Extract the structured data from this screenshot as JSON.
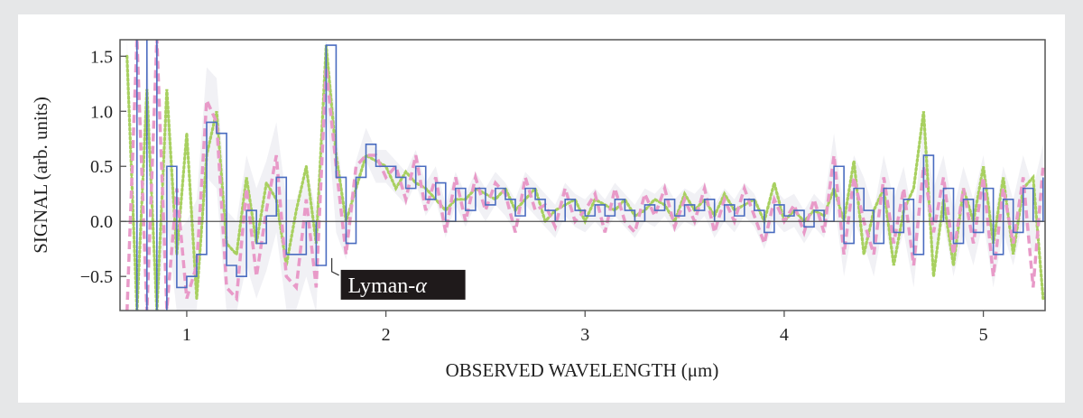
{
  "chart_data": {
    "type": "line",
    "xlabel": "OBSERVED WAVELENGTH (μm)",
    "ylabel": "SIGNAL (arb. units)",
    "xlim": [
      0.665,
      5.31
    ],
    "ylim": [
      -0.81,
      1.65
    ],
    "xticks": [
      1,
      2,
      3,
      4,
      5
    ],
    "yticks": [
      -0.5,
      0.0,
      0.5,
      1.0,
      1.5
    ],
    "ytick_labels": [
      "−0.5",
      "0.0",
      "0.5",
      "1.0",
      "1.5"
    ],
    "grid": false,
    "zero_line": true,
    "annotation": {
      "text": "Lyman-",
      "greek": "α",
      "x": 1.76,
      "y": -0.35
    },
    "x": [
      0.7,
      0.75,
      0.8,
      0.85,
      0.9,
      0.95,
      1.0,
      1.05,
      1.1,
      1.15,
      1.2,
      1.25,
      1.3,
      1.35,
      1.4,
      1.45,
      1.5,
      1.55,
      1.6,
      1.65,
      1.7,
      1.75,
      1.8,
      1.85,
      1.9,
      1.95,
      2.0,
      2.05,
      2.1,
      2.15,
      2.2,
      2.25,
      2.3,
      2.35,
      2.4,
      2.45,
      2.5,
      2.55,
      2.6,
      2.65,
      2.7,
      2.75,
      2.8,
      2.85,
      2.9,
      2.95,
      3.0,
      3.05,
      3.1,
      3.15,
      3.2,
      3.25,
      3.3,
      3.35,
      3.4,
      3.45,
      3.5,
      3.55,
      3.6,
      3.65,
      3.7,
      3.75,
      3.8,
      3.85,
      3.9,
      3.95,
      4.0,
      4.05,
      4.1,
      4.15,
      4.2,
      4.25,
      4.3,
      4.35,
      4.4,
      4.45,
      4.5,
      4.55,
      4.6,
      4.65,
      4.7,
      4.75,
      4.8,
      4.85,
      4.9,
      4.95,
      5.0,
      5.05,
      5.1,
      5.15,
      5.2,
      5.25,
      5.3
    ],
    "series": [
      {
        "style": "dotted",
        "color": "#a8d060",
        "values": [
          1.5,
          -2,
          1.2,
          -1,
          1.2,
          -0.3,
          0.8,
          -0.7,
          0.6,
          1.0,
          -0.2,
          -0.3,
          0.4,
          -0.2,
          0.35,
          0.2,
          -0.4,
          0.1,
          0.5,
          -0.2,
          1.6,
          0.6,
          0.0,
          0.3,
          0.6,
          0.55,
          0.5,
          0.3,
          0.45,
          0.35,
          0.3,
          0.2,
          0.1,
          0.2,
          0.2,
          0.3,
          0.25,
          0.2,
          0.3,
          0.1,
          0.2,
          0.3,
          0.0,
          0.1,
          0.15,
          0.2,
          0.0,
          0.2,
          0.15,
          0.1,
          0.2,
          0.05,
          0.1,
          0.2,
          0.15,
          0.0,
          0.25,
          0.1,
          0.2,
          0.05,
          0.25,
          0.1,
          0.15,
          0.2,
          0.0,
          0.35,
          0.0,
          0.1,
          0.0,
          0.1,
          0.05,
          0.3,
          0.0,
          0.55,
          -0.3,
          0.1,
          0.3,
          -0.4,
          0.1,
          0.3,
          1.0,
          -0.5,
          0.2,
          -0.4,
          0.3,
          0.0,
          0.5,
          -0.2,
          0.4,
          -0.3,
          0.3,
          0.4,
          -0.7
        ]
      },
      {
        "style": "dashed",
        "color": "#e89ac8",
        "values": [
          -2,
          1.8,
          -1.6,
          2,
          -0.8,
          0.3,
          -0.7,
          -0.4,
          1.1,
          0.9,
          -0.6,
          -0.7,
          0.3,
          -0.5,
          0.1,
          0.6,
          -0.5,
          -0.6,
          0.2,
          -0.6,
          1.4,
          0.5,
          -0.3,
          0.5,
          0.6,
          0.6,
          0.4,
          0.5,
          0.2,
          0.6,
          0.1,
          0.4,
          -0.1,
          0.4,
          0.0,
          0.4,
          0.1,
          0.35,
          0.25,
          -0.1,
          0.4,
          0.1,
          0.15,
          -0.05,
          0.3,
          0.0,
          0.1,
          0.25,
          -0.1,
          0.3,
          0.0,
          -0.1,
          0.25,
          0.05,
          0.3,
          -0.05,
          0.2,
          0.0,
          0.3,
          -0.1,
          0.2,
          0.0,
          0.3,
          0.05,
          -0.2,
          0.2,
          0.0,
          0.15,
          -0.1,
          0.2,
          -0.1,
          0.6,
          -0.3,
          0.4,
          0.0,
          -0.3,
          0.4,
          -0.2,
          0.3,
          -0.4,
          0.5,
          -0.1,
          0.4,
          -0.3,
          0.3,
          -0.2,
          0.4,
          -0.5,
          0.3,
          -0.2,
          0.4,
          -0.6,
          0.5
        ]
      },
      {
        "style": "solid-step",
        "color": "#4a6cc0",
        "values": [
          2.0,
          -1.5,
          1.8,
          -1.2,
          0.5,
          -0.6,
          -0.5,
          -0.3,
          0.9,
          0.8,
          -0.4,
          -0.5,
          0.1,
          -0.2,
          0.05,
          0.4,
          -0.3,
          -0.3,
          0.0,
          -0.4,
          1.6,
          0.4,
          -0.2,
          0.4,
          0.7,
          0.5,
          0.5,
          0.4,
          0.3,
          0.5,
          0.2,
          0.35,
          0.0,
          0.3,
          0.1,
          0.3,
          0.15,
          0.3,
          0.2,
          0.05,
          0.3,
          0.2,
          0.1,
          0.0,
          0.2,
          0.1,
          0.05,
          0.15,
          0.05,
          0.2,
          0.1,
          0.0,
          0.15,
          0.1,
          0.2,
          0.05,
          0.15,
          0.1,
          0.2,
          0.0,
          0.15,
          0.05,
          0.2,
          0.1,
          -0.1,
          0.15,
          0.05,
          0.1,
          -0.05,
          0.1,
          0.0,
          0.5,
          -0.2,
          0.3,
          0.1,
          -0.2,
          0.3,
          -0.1,
          0.2,
          -0.3,
          0.6,
          0.0,
          0.3,
          -0.2,
          0.2,
          -0.1,
          0.3,
          -0.3,
          0.2,
          -0.1,
          0.3,
          0.0,
          0.4
        ]
      }
    ],
    "colors": {
      "background": "#e6e7e8",
      "frame": "#555555",
      "annotation_box": "#1f1a1b"
    }
  }
}
